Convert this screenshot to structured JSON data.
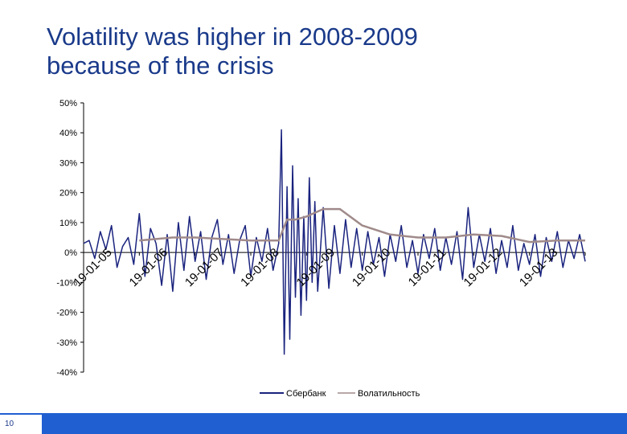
{
  "slide": {
    "title_line1": "Volatility was higher in 2008-2009",
    "title_line2": "because of the crisis",
    "page_number": "10"
  },
  "colors": {
    "title": "#1a3a8a",
    "series_sberbank": "#1a237e",
    "series_volatility": "#a08a8a",
    "footer": "#1f5fd1"
  },
  "chart_data": {
    "type": "line",
    "title": "",
    "xlabel": "",
    "ylabel": "",
    "ylim": [
      -40,
      50
    ],
    "yticks": [
      -40,
      -30,
      -20,
      -10,
      0,
      10,
      20,
      30,
      40,
      50
    ],
    "ytick_labels": [
      "-40%",
      "-30%",
      "-20%",
      "-10%",
      "0%",
      "10%",
      "20%",
      "30%",
      "40%",
      "50%"
    ],
    "x_tick_labels": [
      "19-01-05",
      "19-01-06",
      "19-01-07",
      "19-01-08",
      "19-01-09",
      "19-01-10",
      "19-01-11",
      "19-01-12",
      "19-01-13"
    ],
    "grid": false,
    "legend_position": "bottom",
    "series": [
      {
        "name": "Сбербанк",
        "color": "#1a237e",
        "x": [
          0,
          0.1,
          0.2,
          0.3,
          0.4,
          0.5,
          0.6,
          0.7,
          0.8,
          0.9,
          1.0,
          1.1,
          1.2,
          1.3,
          1.4,
          1.5,
          1.6,
          1.7,
          1.8,
          1.9,
          2.0,
          2.1,
          2.2,
          2.3,
          2.4,
          2.5,
          2.6,
          2.7,
          2.8,
          2.9,
          3.0,
          3.1,
          3.2,
          3.3,
          3.4,
          3.5,
          3.55,
          3.6,
          3.65,
          3.7,
          3.75,
          3.8,
          3.85,
          3.9,
          3.95,
          4.0,
          4.05,
          4.1,
          4.15,
          4.2,
          4.3,
          4.4,
          4.5,
          4.6,
          4.7,
          4.8,
          4.9,
          5.0,
          5.1,
          5.2,
          5.3,
          5.4,
          5.5,
          5.6,
          5.7,
          5.8,
          5.9,
          6.0,
          6.1,
          6.2,
          6.3,
          6.4,
          6.5,
          6.6,
          6.7,
          6.8,
          6.9,
          7.0,
          7.1,
          7.2,
          7.3,
          7.4,
          7.5,
          7.6,
          7.7,
          7.8,
          7.9,
          8.0,
          8.1,
          8.2,
          8.3,
          8.4,
          8.5,
          8.6,
          8.7,
          8.8,
          8.9,
          9.0
        ],
        "values": [
          3,
          4,
          -2,
          7,
          1,
          9,
          -5,
          2,
          5,
          -4,
          13,
          -8,
          8,
          3,
          -11,
          6,
          -13,
          10,
          -6,
          12,
          -3,
          7,
          -9,
          5,
          11,
          -4,
          6,
          -7,
          4,
          9,
          -8,
          5,
          -3,
          8,
          -6,
          3,
          41,
          -34,
          22,
          -29,
          29,
          -15,
          18,
          -21,
          12,
          -16,
          25,
          -10,
          17,
          -13,
          15,
          -12,
          9,
          -7,
          11,
          -5,
          8,
          -6,
          7,
          -4,
          5,
          -8,
          6,
          -3,
          9,
          -5,
          4,
          -7,
          6,
          -2,
          8,
          -6,
          5,
          -4,
          7,
          -9,
          15,
          -5,
          6,
          -3,
          8,
          -7,
          4,
          -5,
          9,
          -6,
          3,
          -4,
          6,
          -8,
          5,
          -3,
          7,
          -5,
          4,
          -2,
          6,
          -3
        ]
      },
      {
        "name": "Волатильность",
        "color": "#a08a8a",
        "x": [
          1.0,
          1.3,
          1.6,
          2.0,
          2.5,
          3.0,
          3.5,
          3.65,
          3.8,
          4.0,
          4.3,
          4.6,
          5.0,
          5.5,
          6.0,
          6.5,
          7.0,
          7.5,
          8.0,
          8.5,
          9.0
        ],
        "values": [
          4,
          4.5,
          5,
          5,
          4.5,
          4,
          4,
          11,
          11,
          12,
          14.5,
          14.5,
          9,
          6,
          5,
          5,
          6,
          5.5,
          3.5,
          4,
          4
        ]
      }
    ]
  }
}
